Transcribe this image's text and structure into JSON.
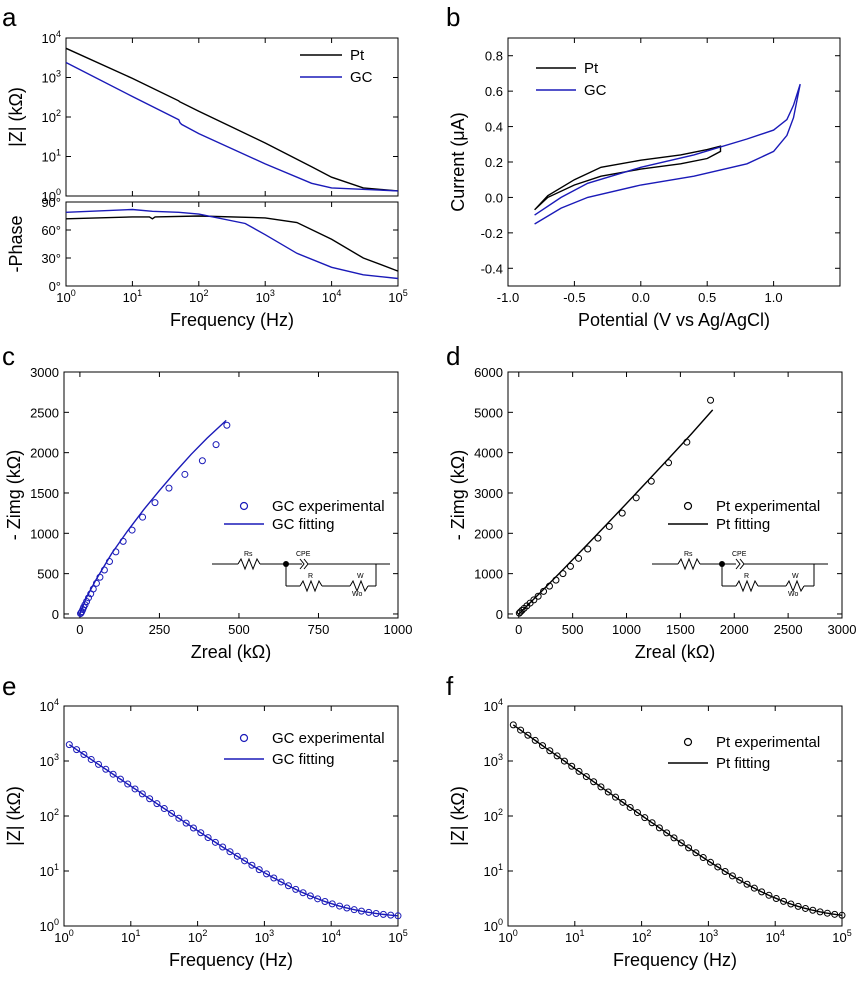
{
  "figure": {
    "panels": {
      "a": {
        "letter": "a"
      },
      "b": {
        "letter": "b"
      },
      "c": {
        "letter": "c"
      },
      "d": {
        "letter": "d"
      },
      "e": {
        "letter": "e"
      },
      "f": {
        "letter": "f"
      }
    },
    "circuit": {
      "rs": "Rs",
      "cpe": "CPE",
      "r": "R",
      "w": "W",
      "wo": "Wo"
    }
  },
  "colors": {
    "pt": "#000000",
    "gc": "#1a1ab8"
  },
  "chart_data": [
    {
      "id": "a-top",
      "panel": "a",
      "type": "line",
      "xscale": "log",
      "yscale": "log",
      "xlim": [
        1,
        100000
      ],
      "ylim": [
        1,
        10000
      ],
      "xticks": [
        "10^0",
        "10^1",
        "10^2",
        "10^3",
        "10^4",
        "10^5"
      ],
      "yticks": [
        "10^0",
        "10^1",
        "10^2",
        "10^3",
        "10^4"
      ],
      "ylabel": "|Z| (kΩ)",
      "legend": "top-right",
      "series": [
        {
          "name": "Pt",
          "color": "#000000",
          "x": [
            1,
            10,
            50,
            51,
            100,
            1000,
            5000,
            10000,
            30000,
            100000
          ],
          "y": [
            5500,
            950,
            255,
            245,
            140,
            22,
            5.5,
            3,
            1.6,
            1.35
          ]
        },
        {
          "name": "GC",
          "color": "#1a1ab8",
          "x": [
            1,
            10,
            50,
            52,
            55,
            100,
            1000,
            5000,
            10000,
            100000
          ],
          "y": [
            2400,
            330,
            85,
            72,
            65,
            38,
            6.5,
            2.1,
            1.6,
            1.35
          ]
        }
      ]
    },
    {
      "id": "a-bottom",
      "panel": "a",
      "type": "line",
      "xscale": "log",
      "yscale": "linear",
      "xlim": [
        1,
        100000
      ],
      "ylim": [
        0,
        90
      ],
      "xticks": [
        "10^0",
        "10^1",
        "10^2",
        "10^3",
        "10^4",
        "10^5"
      ],
      "yticks": [
        "0°",
        "30°",
        "60°",
        "90°"
      ],
      "xlabel": "Frequency (Hz)",
      "ylabel": "-Phase",
      "series": [
        {
          "name": "Pt",
          "color": "#000000",
          "x": [
            1,
            10,
            18,
            20,
            22,
            100,
            1000,
            3000,
            10000,
            30000,
            100000
          ],
          "y": [
            72,
            74,
            74,
            72,
            74,
            75,
            73,
            68,
            50,
            30,
            16
          ]
        },
        {
          "name": "GC",
          "color": "#1a1ab8",
          "x": [
            1,
            10,
            20,
            50,
            100,
            500,
            1000,
            3000,
            10000,
            30000,
            100000
          ],
          "y": [
            79,
            82,
            80,
            79,
            77,
            67,
            55,
            35,
            20,
            12,
            8
          ]
        }
      ]
    },
    {
      "id": "b",
      "panel": "b",
      "type": "line",
      "xlim": [
        -1.0,
        1.5
      ],
      "ylim": [
        -0.5,
        0.9
      ],
      "xticks": [
        "-1.0",
        "-0.5",
        "0.0",
        "0.5",
        "1.0"
      ],
      "yticks": [
        "-0.4",
        "-0.2",
        "0.0",
        "0.2",
        "0.4",
        "0.6",
        "0.8"
      ],
      "xlabel": "Potential (V vs Ag/AgCl)",
      "ylabel": "Current (μA)",
      "legend": "top-left",
      "series": [
        {
          "name": "Pt",
          "color": "#000000",
          "x": [
            -0.8,
            -0.7,
            -0.5,
            -0.3,
            0.0,
            0.3,
            0.5,
            0.6,
            0.6,
            0.5,
            0.3,
            0.0,
            -0.3,
            -0.5,
            -0.7,
            -0.8
          ],
          "y": [
            -0.07,
            0.01,
            0.1,
            0.17,
            0.21,
            0.24,
            0.27,
            0.29,
            0.26,
            0.22,
            0.19,
            0.16,
            0.12,
            0.07,
            0.0,
            -0.07
          ]
        },
        {
          "name": "GC",
          "color": "#1a1ab8",
          "x": [
            -0.8,
            -0.6,
            -0.4,
            0.0,
            0.4,
            0.8,
            1.0,
            1.1,
            1.15,
            1.2,
            1.15,
            1.1,
            1.0,
            0.8,
            0.4,
            0.0,
            -0.4,
            -0.6,
            -0.8
          ],
          "y": [
            -0.1,
            0.0,
            0.08,
            0.17,
            0.24,
            0.33,
            0.38,
            0.44,
            0.52,
            0.64,
            0.45,
            0.35,
            0.26,
            0.19,
            0.12,
            0.07,
            0.0,
            -0.06,
            -0.15
          ]
        }
      ]
    },
    {
      "id": "c",
      "panel": "c",
      "type": "scatter",
      "xlim": [
        -50,
        1000
      ],
      "ylim": [
        -50,
        3000
      ],
      "xticks": [
        "0",
        "250",
        "500",
        "750",
        "1000"
      ],
      "yticks": [
        "0",
        "500",
        "1000",
        "1500",
        "2000",
        "2500",
        "3000"
      ],
      "xlabel": "Zreal (kΩ)",
      "ylabel": "- Zimg (kΩ)",
      "legend": "center-right",
      "series": [
        {
          "name": "GC experimental",
          "marker": "circle",
          "color": "#1a1ab8",
          "x": [
            2,
            4,
            6,
            9,
            12,
            16,
            21,
            27,
            34,
            42,
            52,
            63,
            77,
            93,
            113,
            136,
            164,
            197,
            236,
            280,
            330,
            385,
            428,
            462
          ],
          "y": [
            5,
            15,
            30,
            55,
            85,
            115,
            155,
            200,
            250,
            310,
            380,
            455,
            545,
            650,
            770,
            900,
            1040,
            1200,
            1380,
            1560,
            1730,
            1900,
            2100,
            2340
          ]
        },
        {
          "name": "GC fitting",
          "type": "line",
          "color": "#1a1ab8",
          "x": [
            0,
            20,
            50,
            100,
            150,
            200,
            250,
            300,
            350,
            400,
            460
          ],
          "y": [
            0,
            200,
            420,
            750,
            1030,
            1290,
            1530,
            1760,
            1980,
            2180,
            2400
          ]
        }
      ]
    },
    {
      "id": "d",
      "panel": "d",
      "type": "scatter",
      "xlim": [
        -100,
        3000
      ],
      "ylim": [
        -100,
        6000
      ],
      "xticks": [
        "0",
        "500",
        "1000",
        "1500",
        "2000",
        "2500",
        "3000"
      ],
      "yticks": [
        "0",
        "1000",
        "2000",
        "3000",
        "4000",
        "5000",
        "6000"
      ],
      "xlabel": "Zreal (kΩ)",
      "ylabel": "- Zimg (kΩ)",
      "legend": "center-right",
      "series": [
        {
          "name": "Pt experimental",
          "marker": "circle",
          "color": "#000000",
          "x": [
            5,
            15,
            30,
            50,
            75,
            105,
            140,
            180,
            230,
            285,
            345,
            410,
            480,
            555,
            640,
            735,
            840,
            960,
            1090,
            1230,
            1390,
            1560,
            1780
          ],
          "y": [
            20,
            50,
            90,
            140,
            200,
            270,
            350,
            440,
            560,
            690,
            840,
            1000,
            1180,
            1380,
            1610,
            1880,
            2170,
            2500,
            2880,
            3290,
            3750,
            4260,
            5300
          ]
        },
        {
          "name": "Pt fitting",
          "type": "line",
          "color": "#000000",
          "x": [
            0,
            200,
            400,
            600,
            800,
            1000,
            1200,
            1400,
            1600,
            1800
          ],
          "y": [
            0,
            530,
            1070,
            1620,
            2180,
            2740,
            3310,
            3880,
            4460,
            5060
          ]
        }
      ]
    },
    {
      "id": "e",
      "panel": "e",
      "type": "scatter",
      "xscale": "log",
      "yscale": "log",
      "xlim": [
        1,
        100000
      ],
      "ylim": [
        1,
        10000
      ],
      "xticks": [
        "10^0",
        "10^1",
        "10^2",
        "10^3",
        "10^4",
        "10^5"
      ],
      "yticks": [
        "10^0",
        "10^1",
        "10^2",
        "10^3",
        "10^4"
      ],
      "xlabel": "Frequency (Hz)",
      "ylabel": "|Z| (kΩ)",
      "legend": "top-right",
      "series": [
        {
          "name": "GC experimental",
          "marker": "circle",
          "color": "#1a1ab8",
          "model": {
            "a": 1.35,
            "b": 2300,
            "alpha": 0.82,
            "xmin": 1.2,
            "xmax": 100000,
            "points": 46
          }
        },
        {
          "name": "GC fitting",
          "type": "line",
          "color": "#1a1ab8",
          "model": {
            "a": 1.35,
            "b": 2300,
            "alpha": 0.82,
            "xmin": 1.2,
            "xmax": 100000
          }
        }
      ]
    },
    {
      "id": "f",
      "panel": "f",
      "type": "scatter",
      "xscale": "log",
      "yscale": "log",
      "xlim": [
        1,
        100000
      ],
      "ylim": [
        1,
        10000
      ],
      "xticks": [
        "10^0",
        "10^1",
        "10^2",
        "10^3",
        "10^4",
        "10^5"
      ],
      "yticks": [
        "10^0",
        "10^1",
        "10^2",
        "10^3",
        "10^4"
      ],
      "xlabel": "Frequency (Hz)",
      "ylabel": "|Z| (kΩ)",
      "legend": "top-right",
      "series": [
        {
          "name": "Pt experimental",
          "marker": "circle",
          "color": "#000000",
          "model": {
            "a": 1.3,
            "b": 5300,
            "alpha": 0.86,
            "xmin": 1.2,
            "xmax": 100000,
            "points": 46
          }
        },
        {
          "name": "Pt fitting",
          "type": "line",
          "color": "#000000",
          "model": {
            "a": 1.3,
            "b": 5300,
            "alpha": 0.86,
            "xmin": 1.2,
            "xmax": 100000
          }
        }
      ]
    }
  ]
}
